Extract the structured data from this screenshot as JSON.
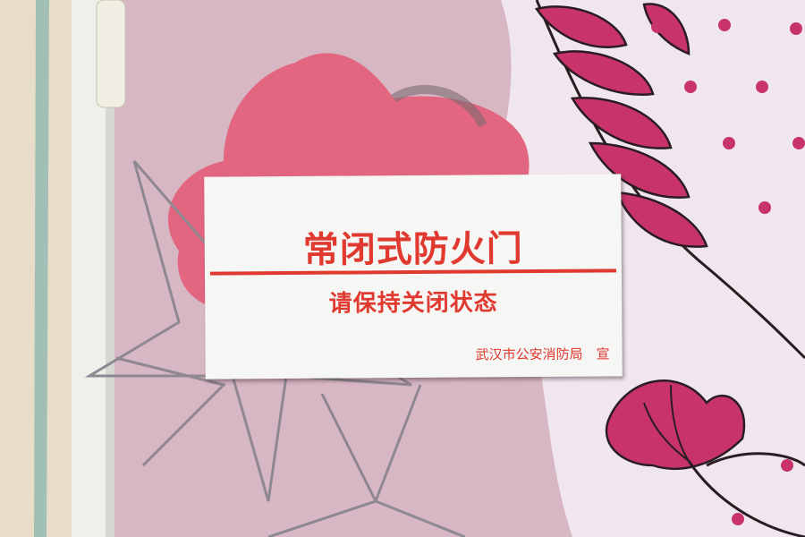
{
  "sign": {
    "title": "常闭式防火门",
    "subtitle": "请保持关闭状态",
    "issuer": "武汉市公安消防局　宣"
  },
  "colors": {
    "sign_red": "#e0392f",
    "sign_background": "#f6f6f4",
    "door_pink": "#d9b9c6",
    "flower_pink": "#e0607a",
    "leaf_magenta": "#c8346a",
    "frame_beige": "#e6dcc6"
  }
}
